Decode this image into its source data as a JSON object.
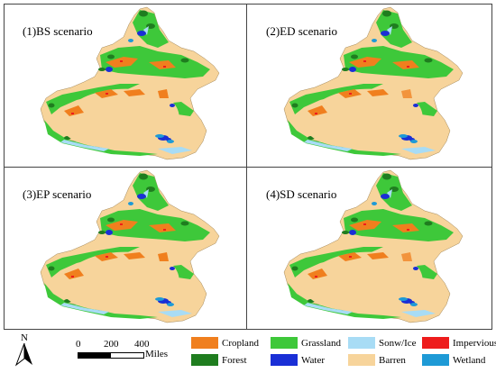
{
  "panels": [
    {
      "label": "(1)BS scenario"
    },
    {
      "label": "(2)ED scenario"
    },
    {
      "label": "(3)EP scenario"
    },
    {
      "label": "(4)SD scenario"
    }
  ],
  "legend": [
    {
      "label": "Cropland",
      "color": "#f07f1e"
    },
    {
      "label": "Grassland",
      "color": "#3ec83a"
    },
    {
      "label": "Sonw/Ice",
      "color": "#a8dcf5"
    },
    {
      "label": "Impervious",
      "color": "#ee1c1c"
    },
    {
      "label": "Forest",
      "color": "#1f7d1f"
    },
    {
      "label": "Water",
      "color": "#1a2fd6"
    },
    {
      "label": "Barren",
      "color": "#f7d49b"
    },
    {
      "label": "Wetland",
      "color": "#1e9ad6"
    }
  ],
  "scale": {
    "ticks": [
      "0",
      "200",
      "400"
    ],
    "unit": "Miles"
  },
  "north_label": "N"
}
